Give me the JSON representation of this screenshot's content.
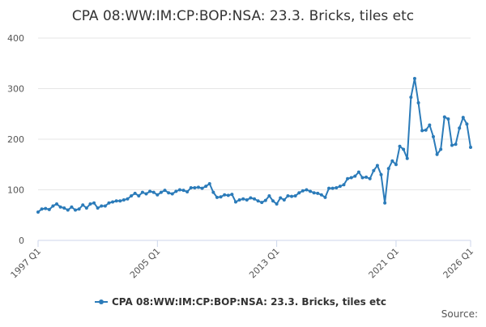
{
  "chart_data": {
    "type": "line",
    "title": "CPA 08:WW:IM:CP:BOP:NSA: 23.3. Bricks, tiles etc",
    "source": "Source:",
    "categories": [
      "1997 Q1",
      null,
      null,
      null,
      null,
      null,
      null,
      null,
      null,
      null,
      null,
      null,
      null,
      null,
      null,
      null,
      null,
      null,
      null,
      null,
      null,
      null,
      null,
      null,
      null,
      null,
      null,
      null,
      null,
      null,
      null,
      null,
      "2005 Q1",
      null,
      null,
      null,
      null,
      null,
      null,
      null,
      null,
      null,
      null,
      null,
      null,
      null,
      null,
      null,
      null,
      null,
      null,
      null,
      null,
      null,
      null,
      null,
      null,
      null,
      null,
      null,
      null,
      null,
      null,
      null,
      "2013 Q1",
      null,
      null,
      null,
      null,
      null,
      null,
      null,
      null,
      null,
      null,
      null,
      null,
      null,
      null,
      null,
      null,
      null,
      null,
      null,
      null,
      null,
      null,
      null,
      null,
      null,
      null,
      null,
      null,
      null,
      null,
      null,
      "2021 Q1",
      null,
      null,
      null,
      null,
      null,
      null,
      null,
      null,
      null,
      null,
      null,
      null,
      null,
      null,
      null,
      null,
      null,
      null,
      null,
      "2026 Q1"
    ],
    "series": [
      {
        "name": "CPA 08:WW:IM:CP:BOP:NSA: 23.3. Bricks, tiles etc",
        "color": "#2b7bb9",
        "values": [
          56,
          62,
          63,
          61,
          68,
          72,
          66,
          64,
          60,
          66,
          60,
          62,
          70,
          64,
          72,
          74,
          64,
          68,
          68,
          74,
          76,
          78,
          78,
          80,
          82,
          88,
          93,
          88,
          95,
          92,
          97,
          95,
          90,
          95,
          99,
          94,
          92,
          97,
          100,
          99,
          96,
          104,
          104,
          105,
          103,
          107,
          112,
          95,
          85,
          86,
          90,
          89,
          91,
          76,
          80,
          82,
          80,
          84,
          82,
          78,
          75,
          79,
          88,
          78,
          72,
          84,
          80,
          88,
          87,
          88,
          94,
          98,
          100,
          97,
          94,
          93,
          90,
          85,
          103,
          103,
          104,
          107,
          110,
          122,
          124,
          127,
          135,
          124,
          125,
          122,
          138,
          148,
          130,
          74,
          142,
          157,
          150,
          186,
          180,
          162,
          283,
          320,
          272,
          217,
          218,
          228,
          205,
          170,
          180,
          244,
          240,
          188,
          190,
          222,
          243,
          230,
          184
        ]
      }
    ],
    "ylim": [
      0,
      400
    ],
    "yticks": [
      0,
      100,
      200,
      300,
      400
    ],
    "grid": true
  }
}
